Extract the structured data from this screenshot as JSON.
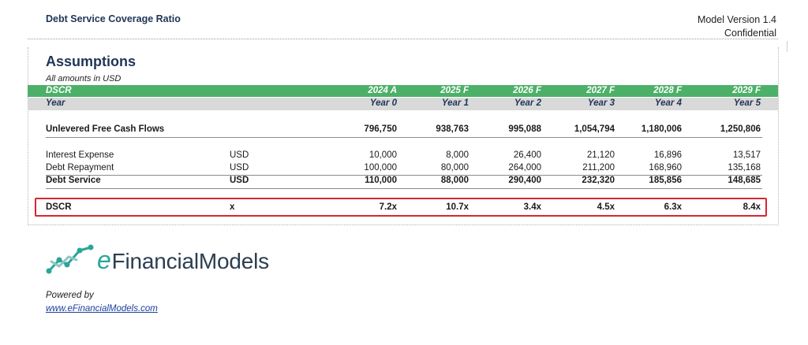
{
  "header": {
    "title": "Debt Service Coverage Ratio",
    "model_version": "Model Version 1.4",
    "confidentiality": "Confidential"
  },
  "section": {
    "title": "Assumptions",
    "note": "All amounts in USD"
  },
  "table": {
    "header_row": {
      "label": "DSCR",
      "columns": [
        "2024 A",
        "2025 F",
        "2026 F",
        "2027 F",
        "2028 F",
        "2029 F"
      ]
    },
    "year_row": {
      "label": "Year",
      "columns": [
        "Year 0",
        "Year 1",
        "Year 2",
        "Year 3",
        "Year 4",
        "Year 5"
      ]
    },
    "rows": [
      {
        "key": "ufcf",
        "label": "Unlevered Free Cash Flows",
        "unit": "",
        "values": [
          "796,750",
          "938,763",
          "995,088",
          "1,054,794",
          "1,180,006",
          "1,250,806"
        ]
      },
      {
        "key": "interest",
        "label": "Interest Expense",
        "unit": "USD",
        "values": [
          "10,000",
          "8,000",
          "26,400",
          "21,120",
          "16,896",
          "13,517"
        ]
      },
      {
        "key": "repayment",
        "label": "Debt Repayment",
        "unit": "USD",
        "values": [
          "100,000",
          "80,000",
          "264,000",
          "211,200",
          "168,960",
          "135,168"
        ]
      },
      {
        "key": "debt_service",
        "label": "Debt Service",
        "unit": "USD",
        "values": [
          "110,000",
          "88,000",
          "290,400",
          "232,320",
          "185,856",
          "148,685"
        ]
      },
      {
        "key": "dscr",
        "label": "DSCR",
        "unit": "x",
        "values": [
          "7.2x",
          "10.7x",
          "3.4x",
          "4.5x",
          "6.3x",
          "8.4x"
        ]
      }
    ]
  },
  "branding": {
    "logo_prefix": "e",
    "logo_name": "FinancialModels",
    "logo_color": "#2ba59a",
    "accent_green": "#4db068",
    "highlight_red": "#d8262e"
  },
  "footer": {
    "powered_by": "Powered by",
    "site": "www.eFinancialModels.com"
  }
}
